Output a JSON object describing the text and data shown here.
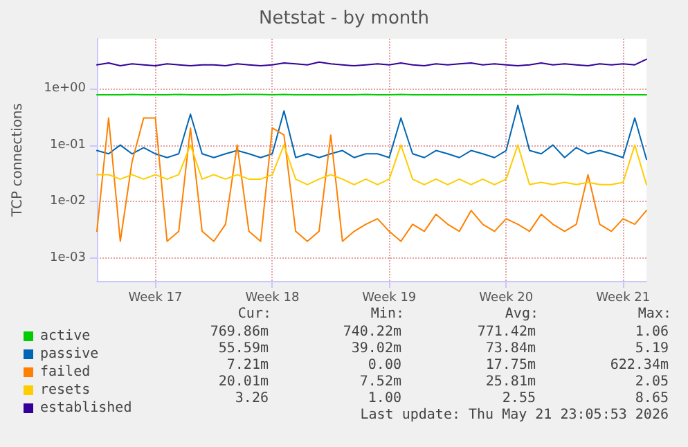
{
  "chart_data": {
    "type": "line",
    "title": "Netstat - by month",
    "ylabel": "TCP connections",
    "log": "y",
    "grid": true,
    "legend": "bottom",
    "marker": "none",
    "line_style": "solid",
    "categories": [
      null,
      null,
      null,
      null,
      null,
      "Week 17",
      null,
      null,
      null,
      null,
      null,
      null,
      null,
      null,
      null,
      "Week 18",
      null,
      null,
      null,
      null,
      null,
      null,
      null,
      null,
      null,
      "Week 19",
      null,
      null,
      null,
      null,
      null,
      null,
      null,
      null,
      null,
      "Week 20",
      null,
      null,
      null,
      null,
      null,
      null,
      null,
      null,
      null,
      "Week 21",
      null,
      null
    ],
    "ylim": [
      0.0004,
      7.5
    ],
    "yticks": [
      {
        "value": 0.001,
        "label": "1e-03"
      },
      {
        "value": 0.01,
        "label": "1e-02"
      },
      {
        "value": 0.1,
        "label": "1e-01"
      },
      {
        "value": 1,
        "label": "1e+00"
      }
    ],
    "series": [
      {
        "name": "active",
        "color": "#00cc00",
        "values": [
          0.77,
          0.77,
          0.77,
          0.78,
          0.77,
          0.77,
          0.77,
          0.78,
          0.77,
          0.77,
          0.77,
          0.77,
          0.78,
          0.78,
          0.78,
          0.77,
          0.78,
          0.77,
          0.77,
          0.77,
          0.77,
          0.77,
          0.77,
          0.78,
          0.77,
          0.77,
          0.78,
          0.77,
          0.77,
          0.77,
          0.77,
          0.77,
          0.77,
          0.77,
          0.77,
          0.77,
          0.77,
          0.77,
          0.78,
          0.78,
          0.78,
          0.77,
          0.77,
          0.77,
          0.77,
          0.77,
          0.77,
          0.77
        ]
      },
      {
        "name": "passive",
        "color": "#0066b3",
        "values": [
          0.08,
          0.07,
          0.1,
          0.07,
          0.09,
          0.07,
          0.06,
          0.07,
          0.35,
          0.07,
          0.06,
          0.07,
          0.08,
          0.07,
          0.06,
          0.07,
          0.4,
          0.06,
          0.07,
          0.06,
          0.07,
          0.08,
          0.06,
          0.07,
          0.07,
          0.06,
          0.3,
          0.07,
          0.06,
          0.08,
          0.07,
          0.06,
          0.08,
          0.07,
          0.06,
          0.08,
          0.5,
          0.08,
          0.07,
          0.1,
          0.06,
          0.09,
          0.07,
          0.08,
          0.07,
          0.06,
          0.3,
          0.056
        ]
      },
      {
        "name": "failed",
        "color": "#ff8000",
        "values": [
          0.003,
          0.3,
          0.002,
          0.05,
          0.3,
          0.3,
          0.002,
          0.003,
          0.2,
          0.003,
          0.002,
          0.004,
          0.1,
          0.003,
          0.002,
          0.2,
          0.15,
          0.003,
          0.002,
          0.003,
          0.15,
          0.002,
          0.003,
          0.004,
          0.005,
          0.003,
          0.002,
          0.004,
          0.003,
          0.006,
          0.004,
          0.003,
          0.007,
          0.004,
          0.003,
          0.005,
          0.004,
          0.003,
          0.006,
          0.004,
          0.003,
          0.004,
          0.03,
          0.004,
          0.003,
          0.005,
          0.004,
          0.007
        ]
      },
      {
        "name": "resets",
        "color": "#ffcc00",
        "values": [
          0.03,
          0.03,
          0.025,
          0.03,
          0.025,
          0.03,
          0.025,
          0.03,
          0.1,
          0.025,
          0.03,
          0.025,
          0.03,
          0.025,
          0.025,
          0.03,
          0.1,
          0.025,
          0.02,
          0.025,
          0.03,
          0.025,
          0.02,
          0.025,
          0.02,
          0.025,
          0.1,
          0.025,
          0.02,
          0.025,
          0.02,
          0.025,
          0.02,
          0.025,
          0.02,
          0.025,
          0.1,
          0.02,
          0.022,
          0.02,
          0.022,
          0.02,
          0.022,
          0.02,
          0.02,
          0.022,
          0.1,
          0.02
        ]
      },
      {
        "name": "established",
        "color": "#330099",
        "values": [
          2.6,
          2.8,
          2.5,
          2.7,
          2.6,
          2.5,
          2.7,
          2.6,
          2.5,
          2.6,
          2.6,
          2.5,
          2.7,
          2.6,
          2.5,
          2.6,
          2.8,
          2.7,
          2.6,
          2.9,
          2.7,
          2.6,
          2.5,
          2.6,
          2.7,
          2.6,
          2.8,
          2.6,
          2.5,
          2.7,
          2.6,
          2.7,
          2.8,
          2.6,
          2.7,
          2.6,
          2.5,
          2.6,
          2.8,
          2.6,
          2.7,
          2.6,
          2.5,
          2.7,
          2.6,
          2.7,
          2.6,
          3.26
        ]
      }
    ],
    "annotations": [
      "Cur:",
      "Min:",
      "Avg:",
      "Max:",
      "769.86m",
      "740.22m",
      "771.42m",
      "1.06",
      "55.59m",
      "39.02m",
      "73.84m",
      "5.19",
      "7.21m",
      "0.00",
      "17.75m",
      "622.34m",
      "20.01m",
      "7.52m",
      "25.81m",
      "2.05",
      "3.26",
      "1.00",
      "2.55",
      "8.65",
      "Last update: Thu May 21 23:05:53 2026"
    ]
  }
}
